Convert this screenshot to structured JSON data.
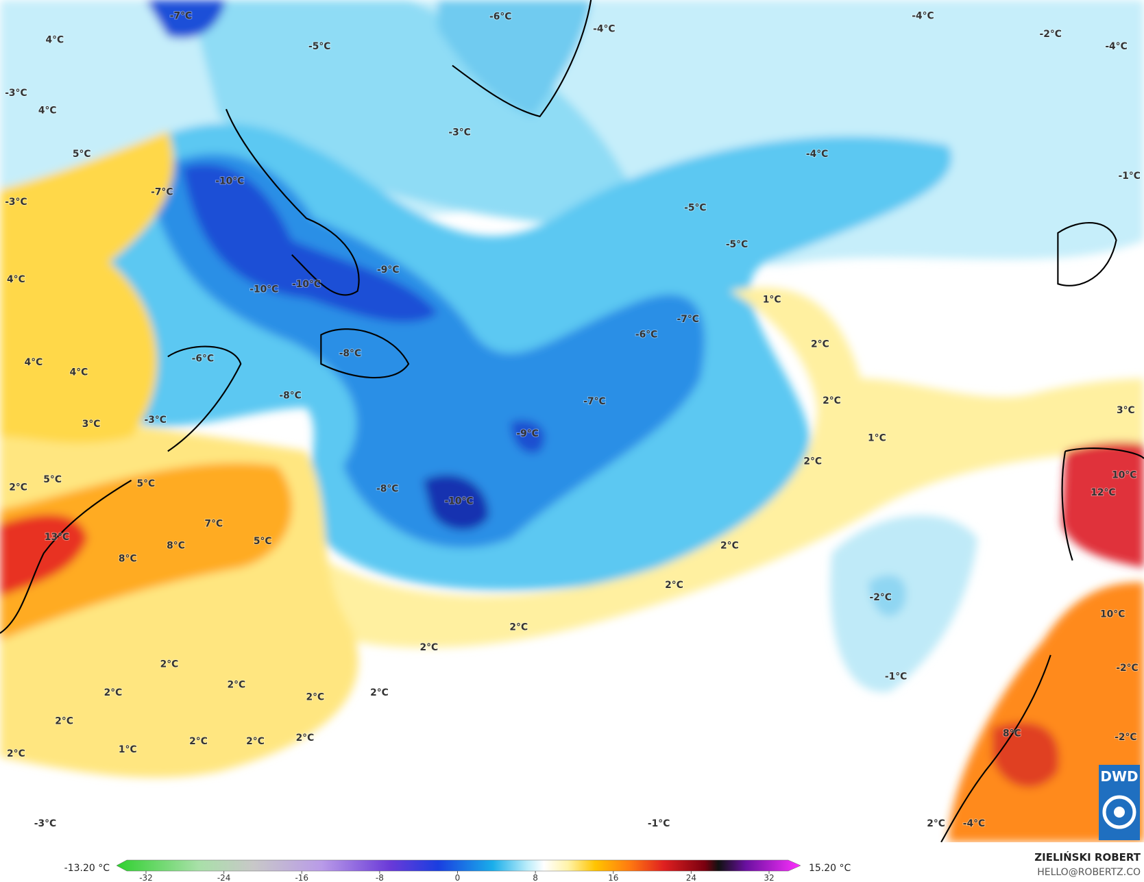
{
  "map": {
    "labels": [
      "-7°C",
      "4°C",
      "-5°C",
      "-6°C",
      "-4°C",
      "-4°C",
      "-2°C",
      "-4°C",
      "-3°C",
      "4°C",
      "-3°C",
      "5°C",
      "-4°C",
      "-10°C",
      "-7°C",
      "-1°C",
      "-3°C",
      "-5°C",
      "-5°C",
      "4°C",
      "-9°C",
      "-10°C",
      "-10°C",
      "1°C",
      "-7°C",
      "-6°C",
      "2°C",
      "4°C",
      "4°C",
      "-6°C",
      "-8°C",
      "-8°C",
      "2°C",
      "-7°C",
      "3°C",
      "-3°C",
      "3°C",
      "-9°C",
      "1°C",
      "2°C",
      "2°C",
      "5°C",
      "5°C",
      "10°C",
      "-8°C",
      "-10°C",
      "12°C",
      "7°C",
      "13°C",
      "8°C",
      "5°C",
      "8°C",
      "2°C",
      "2°C",
      "-2°C",
      "10°C",
      "2°C",
      "2°C",
      "2°C",
      "-2°C",
      "2°C",
      "-1°C",
      "2°C",
      "2°C",
      "2°C",
      "2°C",
      "8°C",
      "-2°C",
      "1°C",
      "2°C",
      "2°C",
      "2°C",
      "2°C",
      "-1°C",
      "2°C",
      "-4°C",
      "-3°C"
    ]
  },
  "legend": {
    "min": "-13.20 °C",
    "max": "15.20 °C",
    "ticks": [
      "-32",
      "-24",
      "-16",
      "-8",
      "0",
      "8",
      "16",
      "24",
      "32"
    ]
  },
  "credit": {
    "author": "ZIELIŃSKI ROBERT",
    "contact": "HELLO@ROBERTZ.CO",
    "logo": "DWD"
  }
}
